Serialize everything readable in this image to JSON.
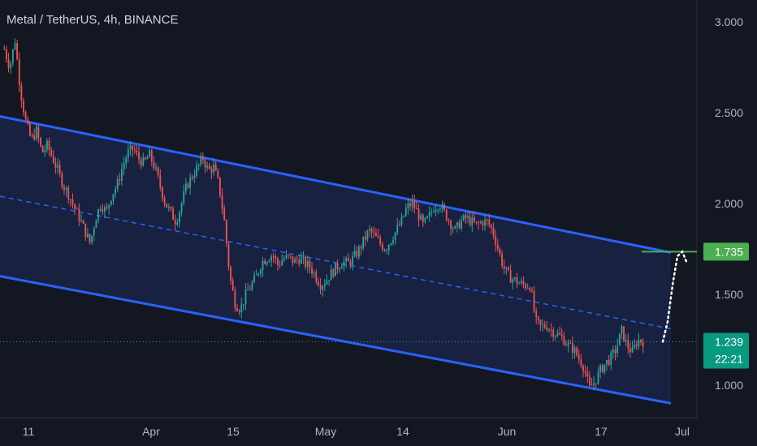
{
  "header": {
    "symbol_title": "Metal / TetherUS, 4h, BINANCE"
  },
  "chart_data": {
    "type": "candlestick",
    "title": "Metal / TetherUS, 4h, BINANCE",
    "y_ticks": [
      "3.000",
      "2.500",
      "2.000",
      "1.500",
      "1.000"
    ],
    "y_tick_values": [
      3.0,
      2.5,
      2.0,
      1.5,
      1.0
    ],
    "x_ticks": [
      "11",
      "Apr",
      "15",
      "May",
      "14",
      "Jun",
      "17",
      "Jul"
    ],
    "ylim": [
      0.85,
      3.1
    ],
    "grid": false,
    "current_price": {
      "value": 1.239,
      "label": "1.239",
      "countdown": "22:21"
    },
    "target_price": {
      "value": 1.735,
      "label": "1.735"
    },
    "channel": {
      "upper": {
        "start": 2.48,
        "end": 1.73
      },
      "middle": {
        "start": 2.04,
        "end": 1.31
      },
      "lower": {
        "start": 1.6,
        "end": 0.9
      }
    },
    "price_path": [
      2.85,
      2.75,
      2.9,
      2.62,
      2.45,
      2.35,
      2.4,
      2.28,
      2.32,
      2.25,
      2.18,
      2.1,
      2.05,
      1.98,
      1.92,
      1.85,
      1.78,
      1.92,
      2.0,
      1.95,
      2.05,
      2.1,
      2.2,
      2.28,
      2.3,
      2.25,
      2.22,
      2.27,
      2.2,
      2.1,
      2.0,
      1.95,
      1.9,
      2.0,
      2.1,
      2.15,
      2.2,
      2.25,
      2.18,
      2.2,
      2.1,
      1.9,
      1.6,
      1.45,
      1.42,
      1.5,
      1.55,
      1.6,
      1.68,
      1.7,
      1.72,
      1.66,
      1.7,
      1.7,
      1.68,
      1.7,
      1.67,
      1.65,
      1.6,
      1.55,
      1.58,
      1.62,
      1.65,
      1.68,
      1.67,
      1.7,
      1.74,
      1.8,
      1.85,
      1.82,
      1.78,
      1.75,
      1.8,
      1.85,
      1.9,
      1.98,
      2.0,
      1.95,
      1.88,
      1.92,
      1.98,
      2.0,
      1.95,
      1.9,
      1.85,
      1.9,
      1.92,
      1.9,
      1.88,
      1.9,
      1.9,
      1.85,
      1.75,
      1.65,
      1.6,
      1.58,
      1.56,
      1.55,
      1.55,
      1.35,
      1.32,
      1.33,
      1.3,
      1.28,
      1.26,
      1.22,
      1.2,
      1.15,
      1.1,
      0.98,
      1.02,
      1.08,
      1.12,
      1.15,
      1.2,
      1.3,
      1.22,
      1.18,
      1.25,
      1.24
    ],
    "projection": [
      1.239,
      1.35,
      1.55,
      1.71,
      1.735,
      1.67
    ]
  }
}
